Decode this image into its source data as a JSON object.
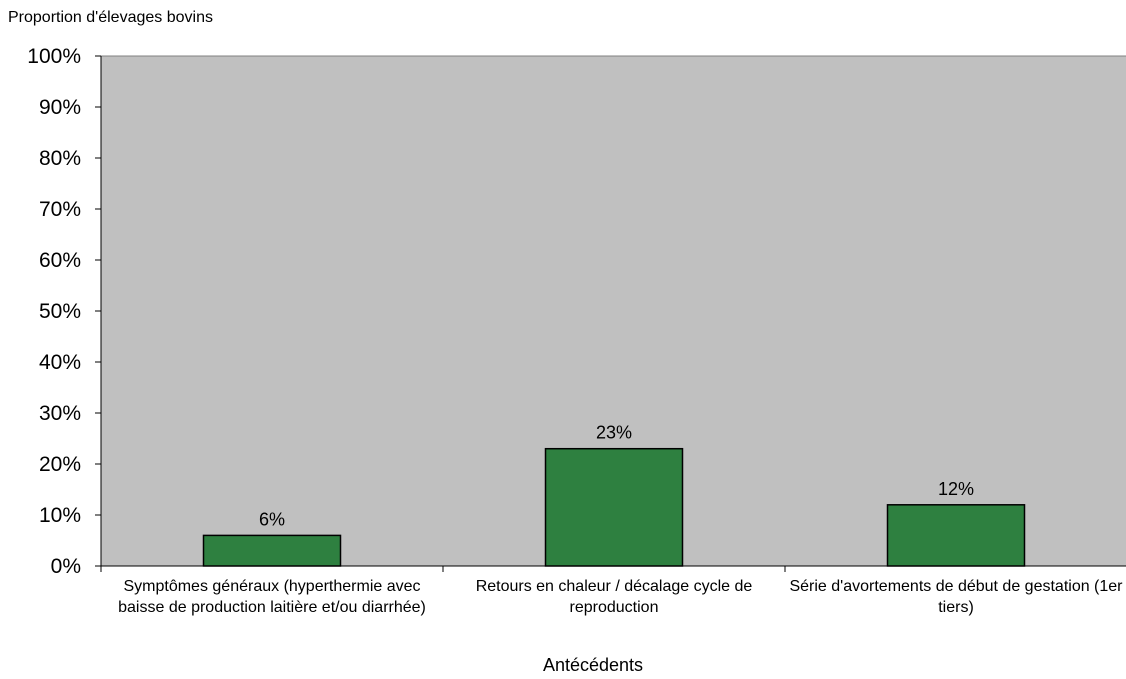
{
  "chart_data": {
    "type": "bar",
    "title": "",
    "ylabel": "Proportion d'élevages bovins",
    "xlabel": "Antécédents",
    "categories": [
      "Symptômes généraux (hyperthermie avec baisse de production laitière et/ou diarrhée)",
      "Retours en chaleur / décalage cycle de reproduction",
      "Série d'avortements de début de gestation (1er tiers)"
    ],
    "values": [
      6,
      23,
      12
    ],
    "value_labels": [
      "6%",
      "23%",
      "12%"
    ],
    "ylim": [
      0,
      100
    ],
    "yticks": [
      0,
      10,
      20,
      30,
      40,
      50,
      60,
      70,
      80,
      90,
      100
    ],
    "ytick_labels": [
      "0%",
      "10%",
      "20%",
      "30%",
      "40%",
      "50%",
      "60%",
      "70%",
      "80%",
      "90%",
      "100%"
    ],
    "grid": false,
    "legend": "none",
    "colors": {
      "plot_background": "#c0c0c0",
      "bar_fill": "#2e8040",
      "bar_stroke": "#000000"
    }
  }
}
